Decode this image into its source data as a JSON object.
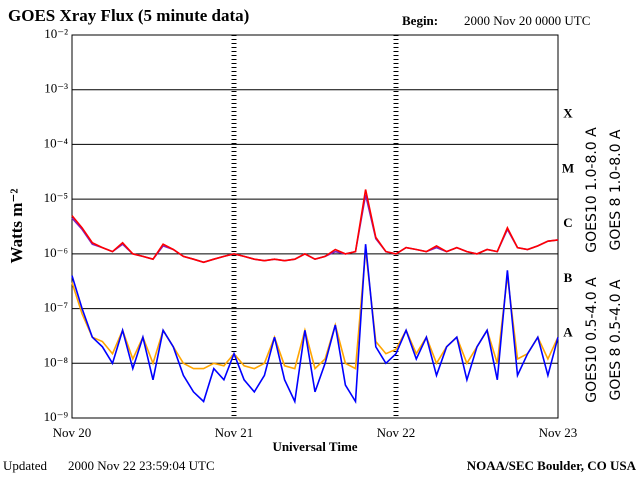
{
  "chart_data": {
    "type": "line",
    "title": "GOES Xray Flux (5 minute data)",
    "begin_label": "Begin:",
    "begin": "2000 Nov 20 0000 UTC",
    "updated_label": "Updated",
    "updated": "2000 Nov 22 23:59:04 UTC",
    "credit": "NOAA/SEC Boulder, CO USA",
    "x_label": "Universal Time",
    "y_label": "Watts m⁻²",
    "log_y": true,
    "grid": true,
    "x": [
      0,
      1.5,
      3,
      4.5,
      6,
      7.5,
      9,
      10.5,
      12,
      13.5,
      15,
      16.5,
      18,
      19.5,
      21,
      22.5,
      24,
      25.5,
      27,
      28.5,
      30,
      31.5,
      33,
      34.5,
      36,
      37.5,
      39,
      40.5,
      42,
      43.5,
      45,
      46.5,
      48,
      49.5,
      51,
      52.5,
      54,
      55.5,
      57,
      58.5,
      60,
      61.5,
      63,
      64.5,
      66,
      67.5,
      69,
      70.5,
      72
    ],
    "xlim": [
      0,
      72
    ],
    "xticks": [
      {
        "value": 0,
        "label": "Nov 20"
      },
      {
        "value": 24,
        "label": "Nov 21"
      },
      {
        "value": 48,
        "label": "Nov 22"
      },
      {
        "value": 72,
        "label": "Nov 23"
      }
    ],
    "ylim": [
      1e-09,
      0.01
    ],
    "yticks": [
      {
        "value": 1e-09,
        "label": "10⁻⁹"
      },
      {
        "value": 1e-08,
        "label": "10⁻⁸"
      },
      {
        "value": 1e-07,
        "label": "10⁻⁷"
      },
      {
        "value": 1e-06,
        "label": "10⁻⁶"
      },
      {
        "value": 1e-05,
        "label": "10⁻⁵"
      },
      {
        "value": 0.0001,
        "label": "10⁻⁴"
      },
      {
        "value": 0.001,
        "label": "10⁻³"
      },
      {
        "value": 0.01,
        "label": "10⁻²"
      }
    ],
    "y2lim": [
      1e-09,
      0.01
    ],
    "y2ticks": [
      {
        "value": 0.00035,
        "label": "X"
      },
      {
        "value": 3.5e-05,
        "label": "M"
      },
      {
        "value": 3.5e-06,
        "label": "C"
      },
      {
        "value": 3.5e-07,
        "label": "B"
      },
      {
        "value": 3.5e-08,
        "label": "A"
      }
    ],
    "series": [
      {
        "name": "GOES10 0.5-4.0 A",
        "color": "#ffa500",
        "values": [
          3e-07,
          8e-08,
          3e-08,
          2.5e-08,
          1.5e-08,
          4e-08,
          1.2e-08,
          3e-08,
          1e-08,
          4e-08,
          2e-08,
          1e-08,
          8e-09,
          8e-09,
          1e-08,
          9e-09,
          1.5e-08,
          9e-09,
          8e-09,
          1e-08,
          3e-08,
          9e-09,
          8e-09,
          4e-08,
          8e-09,
          1.2e-08,
          5e-08,
          1e-08,
          8e-09,
          1.2e-06,
          2.5e-08,
          1.5e-08,
          1.8e-08,
          4e-08,
          1.5e-08,
          3e-08,
          1e-08,
          2e-08,
          3e-08,
          1e-08,
          2e-08,
          4e-08,
          1e-08,
          4e-07,
          1.2e-08,
          1.5e-08,
          3e-08,
          1.2e-08,
          3e-08
        ]
      },
      {
        "name": "GOES 8 0.5-4.0 A",
        "color": "#0000ff",
        "values": [
          4e-07,
          1e-07,
          3e-08,
          2e-08,
          1e-08,
          4e-08,
          8e-09,
          3e-08,
          5e-09,
          4e-08,
          2e-08,
          6e-09,
          3e-09,
          2e-09,
          8e-09,
          5e-09,
          1.5e-08,
          5e-09,
          3e-09,
          6e-09,
          3e-08,
          5e-09,
          2e-09,
          4e-08,
          3e-09,
          1e-08,
          5e-08,
          4e-09,
          2e-09,
          1.5e-06,
          2e-08,
          1e-08,
          1.5e-08,
          4e-08,
          1.2e-08,
          3e-08,
          6e-09,
          2e-08,
          3e-08,
          5e-09,
          2e-08,
          4e-08,
          5e-09,
          5e-07,
          6e-09,
          1.5e-08,
          3e-08,
          6e-09,
          3e-08
        ]
      },
      {
        "name": "GOES10 1.0-8.0 A",
        "color": "#8020c0",
        "values": [
          4.5e-06,
          2.8e-06,
          1.5e-06,
          1.3e-06,
          1.1e-06,
          1.5e-06,
          1e-06,
          9e-07,
          8e-07,
          1.4e-06,
          1.2e-06,
          9e-07,
          8e-07,
          7e-07,
          8e-07,
          9e-07,
          1e-06,
          9e-07,
          8e-07,
          7.5e-07,
          8e-07,
          7.5e-07,
          8e-07,
          1e-06,
          8e-07,
          9e-07,
          1.1e-06,
          1e-06,
          1.1e-06,
          1.2e-05,
          1.9e-06,
          1.1e-06,
          1e-06,
          1.3e-06,
          1.2e-06,
          1.1e-06,
          1.3e-06,
          1.1e-06,
          1.3e-06,
          1.1e-06,
          1e-06,
          1.2e-06,
          1.1e-06,
          2.8e-06,
          1.3e-06,
          1.2e-06,
          1.4e-06,
          1.7e-06,
          1.8e-06
        ]
      },
      {
        "name": "GOES 8 1.0-8.0 A",
        "color": "#ff0000",
        "values": [
          5e-06,
          3e-06,
          1.6e-06,
          1.3e-06,
          1.1e-06,
          1.6e-06,
          1e-06,
          9e-07,
          8e-07,
          1.5e-06,
          1.2e-06,
          9e-07,
          8e-07,
          7e-07,
          8e-07,
          9e-07,
          1e-06,
          9e-07,
          8e-07,
          7.5e-07,
          8e-07,
          7.5e-07,
          8e-07,
          1e-06,
          8e-07,
          9e-07,
          1.2e-06,
          1e-06,
          1.1e-06,
          1.5e-05,
          2e-06,
          1.1e-06,
          1e-06,
          1.3e-06,
          1.2e-06,
          1.1e-06,
          1.4e-06,
          1.1e-06,
          1.3e-06,
          1.1e-06,
          1e-06,
          1.2e-06,
          1.1e-06,
          3e-06,
          1.3e-06,
          1.2e-06,
          1.4e-06,
          1.7e-06,
          1.8e-06
        ]
      }
    ]
  }
}
